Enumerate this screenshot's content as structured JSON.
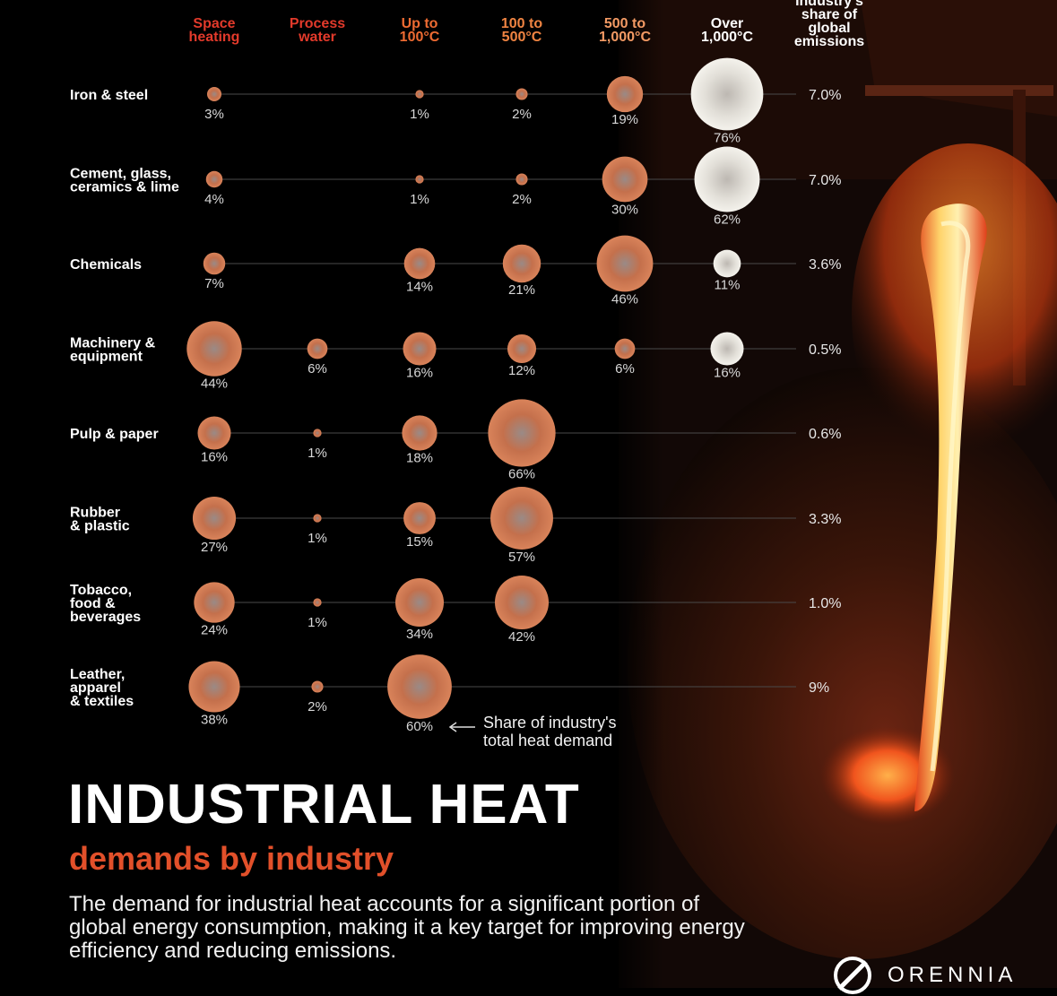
{
  "chart_data": {
    "type": "bubble-matrix",
    "columns": [
      {
        "label": [
          "Space",
          "heating"
        ],
        "color": "#e33a2b"
      },
      {
        "label": [
          "Process",
          "water"
        ],
        "color": "#e33a2b"
      },
      {
        "label": [
          "Up to",
          "100°C"
        ],
        "color": "#ee6b32"
      },
      {
        "label": [
          "100 to",
          "500°C"
        ],
        "color": "#f08442"
      },
      {
        "label": [
          "500 to",
          "1,000°C"
        ],
        "color": "#f39a64"
      },
      {
        "label": [
          "Over",
          "1,000°C"
        ],
        "color": "#ffffff"
      }
    ],
    "emissions_header": [
      "Industry's",
      "share of",
      "global",
      "emissions"
    ],
    "unit": "%",
    "rows": [
      {
        "label": [
          "Iron & steel"
        ],
        "values": [
          3,
          null,
          1,
          2,
          19,
          76
        ],
        "emissions": "7.0%"
      },
      {
        "label": [
          "Cement, glass,",
          "ceramics & lime"
        ],
        "values": [
          4,
          null,
          1,
          2,
          30,
          62
        ],
        "emissions": "7.0%"
      },
      {
        "label": [
          "Chemicals"
        ],
        "values": [
          7,
          null,
          14,
          21,
          46,
          11
        ],
        "emissions": "3.6%"
      },
      {
        "label": [
          "Machinery &",
          "equipment"
        ],
        "values": [
          44,
          6,
          16,
          12,
          6,
          16
        ],
        "emissions": "0.5%"
      },
      {
        "label": [
          "Pulp & paper"
        ],
        "values": [
          16,
          1,
          18,
          66,
          null,
          null
        ],
        "emissions": "0.6%"
      },
      {
        "label": [
          "Rubber",
          "& plastic"
        ],
        "values": [
          27,
          1,
          15,
          57,
          null,
          null
        ],
        "emissions": "3.3%"
      },
      {
        "label": [
          "Tobacco,",
          "food &",
          "beverages"
        ],
        "values": [
          24,
          1,
          34,
          42,
          null,
          null
        ],
        "emissions": "1.0%"
      },
      {
        "label": [
          "Leather,",
          "apparel",
          "& textiles"
        ],
        "values": [
          38,
          2,
          60,
          null,
          null,
          null
        ],
        "emissions": "9%"
      }
    ],
    "annotation": [
      "Share of industry's",
      "total heat demand"
    ]
  },
  "title": "INDUSTRIAL HEAT",
  "subtitle": "demands by industry",
  "description": "The demand for industrial heat accounts for a significant portion of global energy consumption, making it a key target for improving energy efficiency and reducing emissions.",
  "brand": "ORENNIA",
  "colors": {
    "background": "#000000",
    "accent": "#e2502a",
    "bubble_warm": "#c9714c",
    "bubble_hot": "#d9d6cf"
  }
}
